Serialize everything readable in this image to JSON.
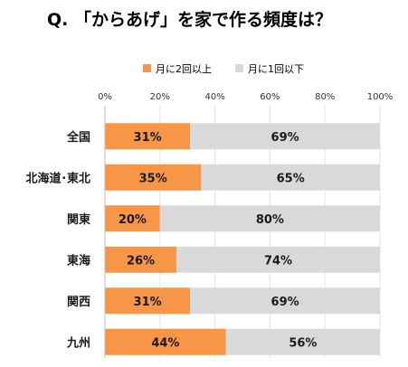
{
  "chart_data": {
    "type": "bar",
    "orientation": "horizontal",
    "stacked": true,
    "percent": true,
    "title": "Q. 「からあげ」を家で作る頻度は？",
    "categories": [
      "全国",
      "北海道･東北",
      "関東",
      "東海",
      "関西",
      "九州"
    ],
    "series": [
      {
        "name": "月に2回以上",
        "values": [
          31,
          35,
          20,
          26,
          31,
          44
        ],
        "color": "#f79646"
      },
      {
        "name": "月に1回以下",
        "values": [
          69,
          65,
          80,
          74,
          69,
          56
        ],
        "color": "#d9d9d9"
      }
    ],
    "data_labels": [
      [
        "31%",
        "35%",
        "20%",
        "26%",
        "31%",
        "44%"
      ],
      [
        "69%",
        "65%",
        "80%",
        "74%",
        "69%",
        "56%"
      ]
    ],
    "xticks": [
      "0%",
      "20%",
      "40%",
      "60%",
      "80%",
      "100%"
    ],
    "xlim": [
      0,
      100
    ],
    "legend_position": "top",
    "grid": true
  }
}
